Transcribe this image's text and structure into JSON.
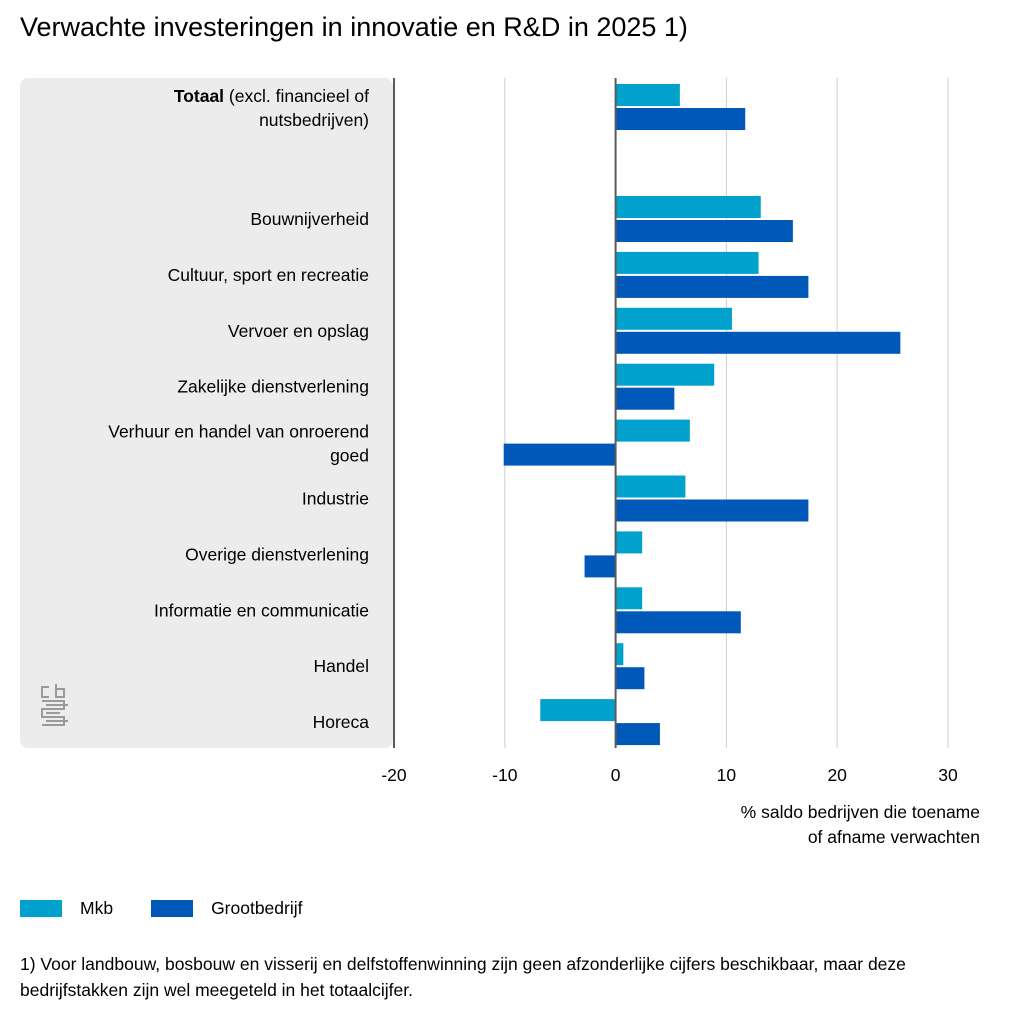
{
  "title": "Verwachte investeringen in innovatie en R&D in 2025 1)",
  "xlabel_line1": "% saldo bedrijven die toename",
  "xlabel_line2": "of afname verwachten",
  "legend": [
    {
      "name": "Mkb",
      "color": "#00a1cd"
    },
    {
      "name": "Grootbedrijf",
      "color": "#0058b8"
    }
  ],
  "footnote": "1) Voor landbouw, bosbouw en visserij en delfstoffenwinning zijn geen afzonderlijke cijfers beschikbaar, maar deze bedrijfstakken zijn wel meegeteld in het totaalcijfer.",
  "logo_icon": "cbs-logo-icon",
  "chart_data": {
    "type": "bar",
    "orientation": "horizontal",
    "xlim": [
      -20,
      30
    ],
    "xticks": [
      -20,
      -10,
      0,
      10,
      20,
      30
    ],
    "grid": true,
    "legend_position": "bottom-left",
    "categories": [
      {
        "bold": "Totaal",
        "label": "(excl. financieel of",
        "label2": "nutsbedrijven)"
      },
      {
        "label": "Bouwnijverheid"
      },
      {
        "label": "Cultuur, sport en recreatie"
      },
      {
        "label": "Vervoer en opslag"
      },
      {
        "label": "Zakelijke dienstverlening"
      },
      {
        "label": "Verhuur en handel van onroerend",
        "label2": "goed"
      },
      {
        "label": "Industrie"
      },
      {
        "label": "Overige dienstverlening"
      },
      {
        "label": "Informatie en communicatie"
      },
      {
        "label": "Handel"
      },
      {
        "label": "Horeca"
      }
    ],
    "series": [
      {
        "name": "Mkb",
        "color": "#00a1cd",
        "values": [
          5.8,
          13.1,
          12.9,
          10.5,
          8.9,
          6.7,
          6.3,
          2.4,
          2.4,
          0.7,
          -6.8
        ]
      },
      {
        "name": "Grootbedrijf",
        "color": "#0058b8",
        "values": [
          11.7,
          16.0,
          17.4,
          25.7,
          5.3,
          -10.1,
          17.4,
          -2.8,
          11.3,
          2.6,
          4.0
        ]
      }
    ]
  }
}
